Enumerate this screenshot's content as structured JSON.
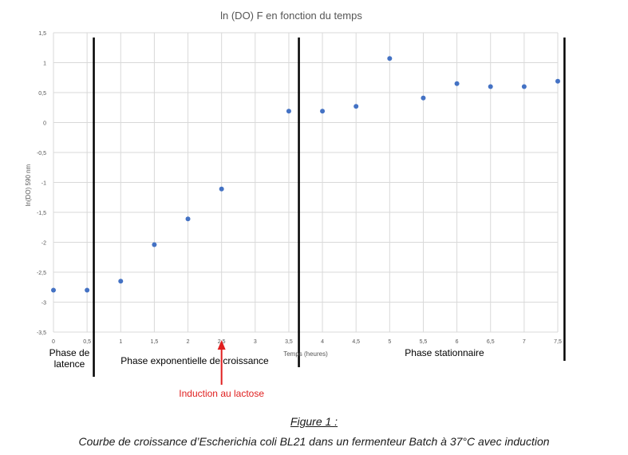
{
  "chart_data": {
    "type": "scatter",
    "title": "ln (DO) F en fonction du temps",
    "xlabel": "Temps (heures)",
    "ylabel": "ln(DO) 590 nm",
    "xlim": [
      0,
      7.5
    ],
    "ylim": [
      -3.5,
      1.5
    ],
    "x_ticks": [
      "0",
      "0,5",
      "1",
      "1,5",
      "2",
      "2,5",
      "3",
      "3,5",
      "4",
      "4,5",
      "5",
      "5,5",
      "6",
      "6,5",
      "7",
      "7,5"
    ],
    "y_ticks": [
      "1,5",
      "1",
      "0,5",
      "0",
      "-0,5",
      "-1",
      "-1,5",
      "-2",
      "-2,5",
      "-3",
      "-3,5"
    ],
    "grid": true,
    "series": [
      {
        "x": [
          0,
          0.5,
          1,
          1.5,
          2,
          2.5,
          3.5,
          4,
          4.5,
          5,
          5.5,
          6,
          6.5,
          7,
          7.5
        ],
        "y": [
          -2.8,
          -2.8,
          -2.65,
          -2.04,
          -1.61,
          -1.11,
          0.19,
          0.19,
          0.27,
          1.07,
          0.41,
          0.65,
          0.6,
          0.6,
          0.69
        ],
        "color": "#4472c4"
      }
    ],
    "phase_boundaries_x": [
      0.6,
      3.65,
      7.6
    ],
    "phase_labels": [
      "Phase de latence",
      "Phase exponentielle de croissance",
      "Phase stationnaire"
    ],
    "annotation": {
      "text": "Induction au lactose",
      "x": 2.5,
      "color": "#e02020"
    }
  },
  "caption": {
    "title": "Figure 1 :",
    "text": "Courbe de croissance d’Escherichia coli BL21 dans un fermenteur Batch à 37°C avec induction"
  }
}
